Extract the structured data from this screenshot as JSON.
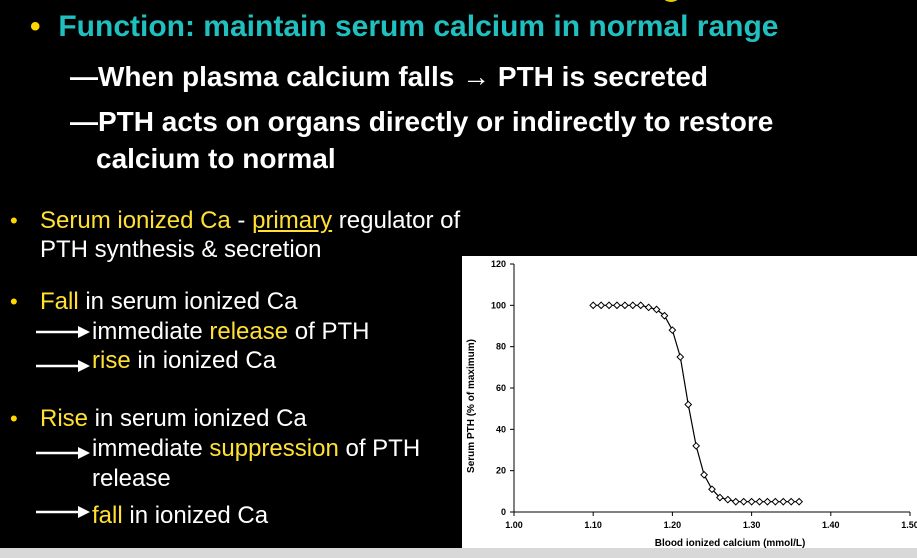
{
  "slide": {
    "main_bullet": "Function: maintain serum calcium in normal range",
    "sub_bullets": [
      "When plasma calcium falls → PTH is secreted",
      "PTH acts on organs directly or indirectly to restore",
      "calcium to normal"
    ],
    "dash": "—",
    "bullet_glyph": "•",
    "list": {
      "item1": {
        "a": "Serum ionized Ca",
        "b": " - ",
        "c": "primary",
        "d": " regulator of",
        "line2": "PTH synthesis & secretion"
      },
      "item2": {
        "a": "Fall",
        "b": " in serum ionized Ca",
        "l2a": "immediate ",
        "l2b": "release",
        "l2c": " of PTH",
        "l3a": "rise",
        "l3b": " in ionized Ca"
      },
      "item3": {
        "a": "Rise",
        "b": " in serum ionized Ca",
        "l2a": "immediate ",
        "l2b": "suppression",
        "l2c": " of PTH",
        "l3": "release",
        "l4a": "fall",
        "l4b": " in ionized Ca"
      }
    }
  },
  "chart_data": {
    "type": "scatter",
    "xlabel": "Blood ionized calcium (mmol/L)",
    "ylabel": "Serum PTH (% of maximum)",
    "xlim": [
      1.0,
      1.5
    ],
    "ylim": [
      0,
      120
    ],
    "x_ticks": [
      "1.00",
      "1.10",
      "1.20",
      "1.30",
      "1.40",
      "1.50"
    ],
    "y_ticks": [
      "0",
      "20",
      "40",
      "60",
      "80",
      "100",
      "120"
    ],
    "marker": "diamond",
    "points": [
      [
        1.1,
        100
      ],
      [
        1.11,
        100
      ],
      [
        1.12,
        100
      ],
      [
        1.13,
        100
      ],
      [
        1.14,
        100
      ],
      [
        1.15,
        100
      ],
      [
        1.16,
        100
      ],
      [
        1.17,
        99
      ],
      [
        1.18,
        98
      ],
      [
        1.19,
        95
      ],
      [
        1.2,
        88
      ],
      [
        1.21,
        75
      ],
      [
        1.22,
        52
      ],
      [
        1.23,
        32
      ],
      [
        1.24,
        18
      ],
      [
        1.25,
        11
      ],
      [
        1.26,
        7
      ],
      [
        1.27,
        6
      ],
      [
        1.28,
        5
      ],
      [
        1.29,
        5
      ],
      [
        1.3,
        5
      ],
      [
        1.31,
        5
      ],
      [
        1.32,
        5
      ],
      [
        1.33,
        5
      ],
      [
        1.34,
        5
      ],
      [
        1.35,
        5
      ],
      [
        1.36,
        5
      ]
    ],
    "grid": false
  }
}
